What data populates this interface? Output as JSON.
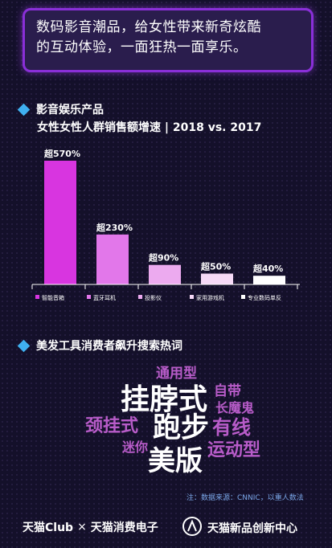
{
  "header": {
    "quote_line1": "数码影音潮品，给女性带来新奇炫酷",
    "quote_line2": "的互动体验，一面狂热一面享乐。"
  },
  "section1": {
    "title": "影音娱乐产品",
    "subtitle": "女性女性人群销售额增速 | 2018 vs. 2017"
  },
  "chart_data": {
    "type": "bar",
    "categories": [
      "智能音箱",
      "蓝牙耳机",
      "投影仪",
      "家用游戏机",
      "专业数码单反"
    ],
    "values": [
      570,
      230,
      90,
      50,
      40
    ],
    "value_labels": [
      "超570%",
      "超230%",
      "超90%",
      "超50%",
      "超40%"
    ],
    "colors": [
      "#d835e0",
      "#e277ea",
      "#ecaaef",
      "#f6daf7",
      "#ffffff"
    ],
    "title": "",
    "xlabel": "",
    "ylabel": "",
    "legend": "bottom"
  },
  "section2": {
    "title": "美发工具消费者飙升搜索热词"
  },
  "wordcloud": [
    {
      "word": "通用型",
      "color": "#b85cc9"
    },
    {
      "word": "挂脖式",
      "color": "#ffffff"
    },
    {
      "word": "自带",
      "color": "#b85cc9"
    },
    {
      "word": "长魔鬼",
      "color": "#b85cc9"
    },
    {
      "word": "颈挂式",
      "color": "#b85cc9"
    },
    {
      "word": "跑步",
      "color": "#ffffff"
    },
    {
      "word": "有线",
      "color": "#b85cc9"
    },
    {
      "word": "迷你",
      "color": "#b85cc9"
    },
    {
      "word": "美版",
      "color": "#ffffff"
    },
    {
      "word": "运动型",
      "color": "#b85cc9"
    }
  ],
  "source": "注：数据来源：CNNIC，以重人数法",
  "footer": {
    "brand1": "天猫Club",
    "separator": "×",
    "brand2": "天猫消费电子",
    "brand3": "天猫新品创新中心"
  }
}
